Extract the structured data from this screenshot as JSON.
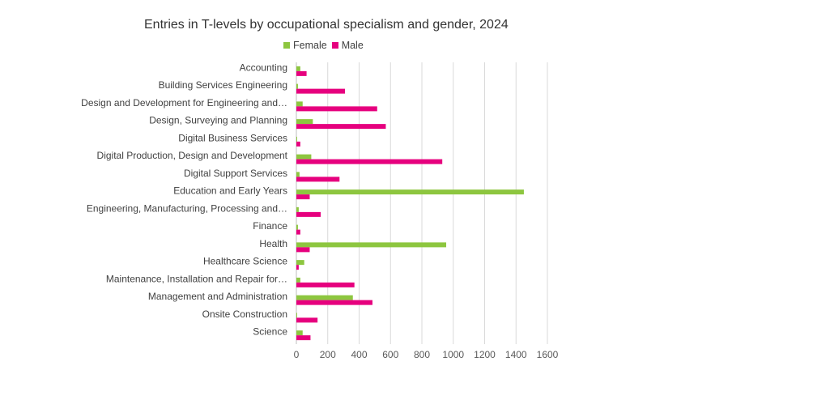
{
  "chart_data": {
    "type": "bar",
    "orientation": "horizontal",
    "title": "Entries in T-levels by occupational specialism and gender, 2024",
    "categories": [
      "Accounting",
      "Building Services Engineering",
      "Design and Development for Engineering and…",
      "Design, Surveying and Planning",
      "Digital Business Services",
      "Digital Production, Design and Development",
      "Digital Support Services",
      "Education and Early Years",
      "Engineering, Manufacturing, Processing and…",
      "Finance",
      "Health",
      "Healthcare Science",
      "Maintenance, Installation and Repair for…",
      "Management and Administration",
      "Onsite Construction",
      "Science"
    ],
    "series": [
      {
        "name": "Female",
        "color": "#8dc63f",
        "values": [
          25,
          10,
          40,
          105,
          5,
          95,
          20,
          1450,
          15,
          10,
          955,
          50,
          25,
          360,
          5,
          40
        ]
      },
      {
        "name": "Male",
        "color": "#e6007e",
        "values": [
          65,
          310,
          515,
          570,
          25,
          930,
          275,
          85,
          155,
          25,
          85,
          15,
          370,
          485,
          135,
          90
        ]
      }
    ],
    "xlim": [
      0,
      1600
    ],
    "xticks": [
      "0",
      "200",
      "400",
      "600",
      "800",
      "1000",
      "1200",
      "1400",
      "1600"
    ],
    "grid": "vertical",
    "legend_position": "top"
  }
}
